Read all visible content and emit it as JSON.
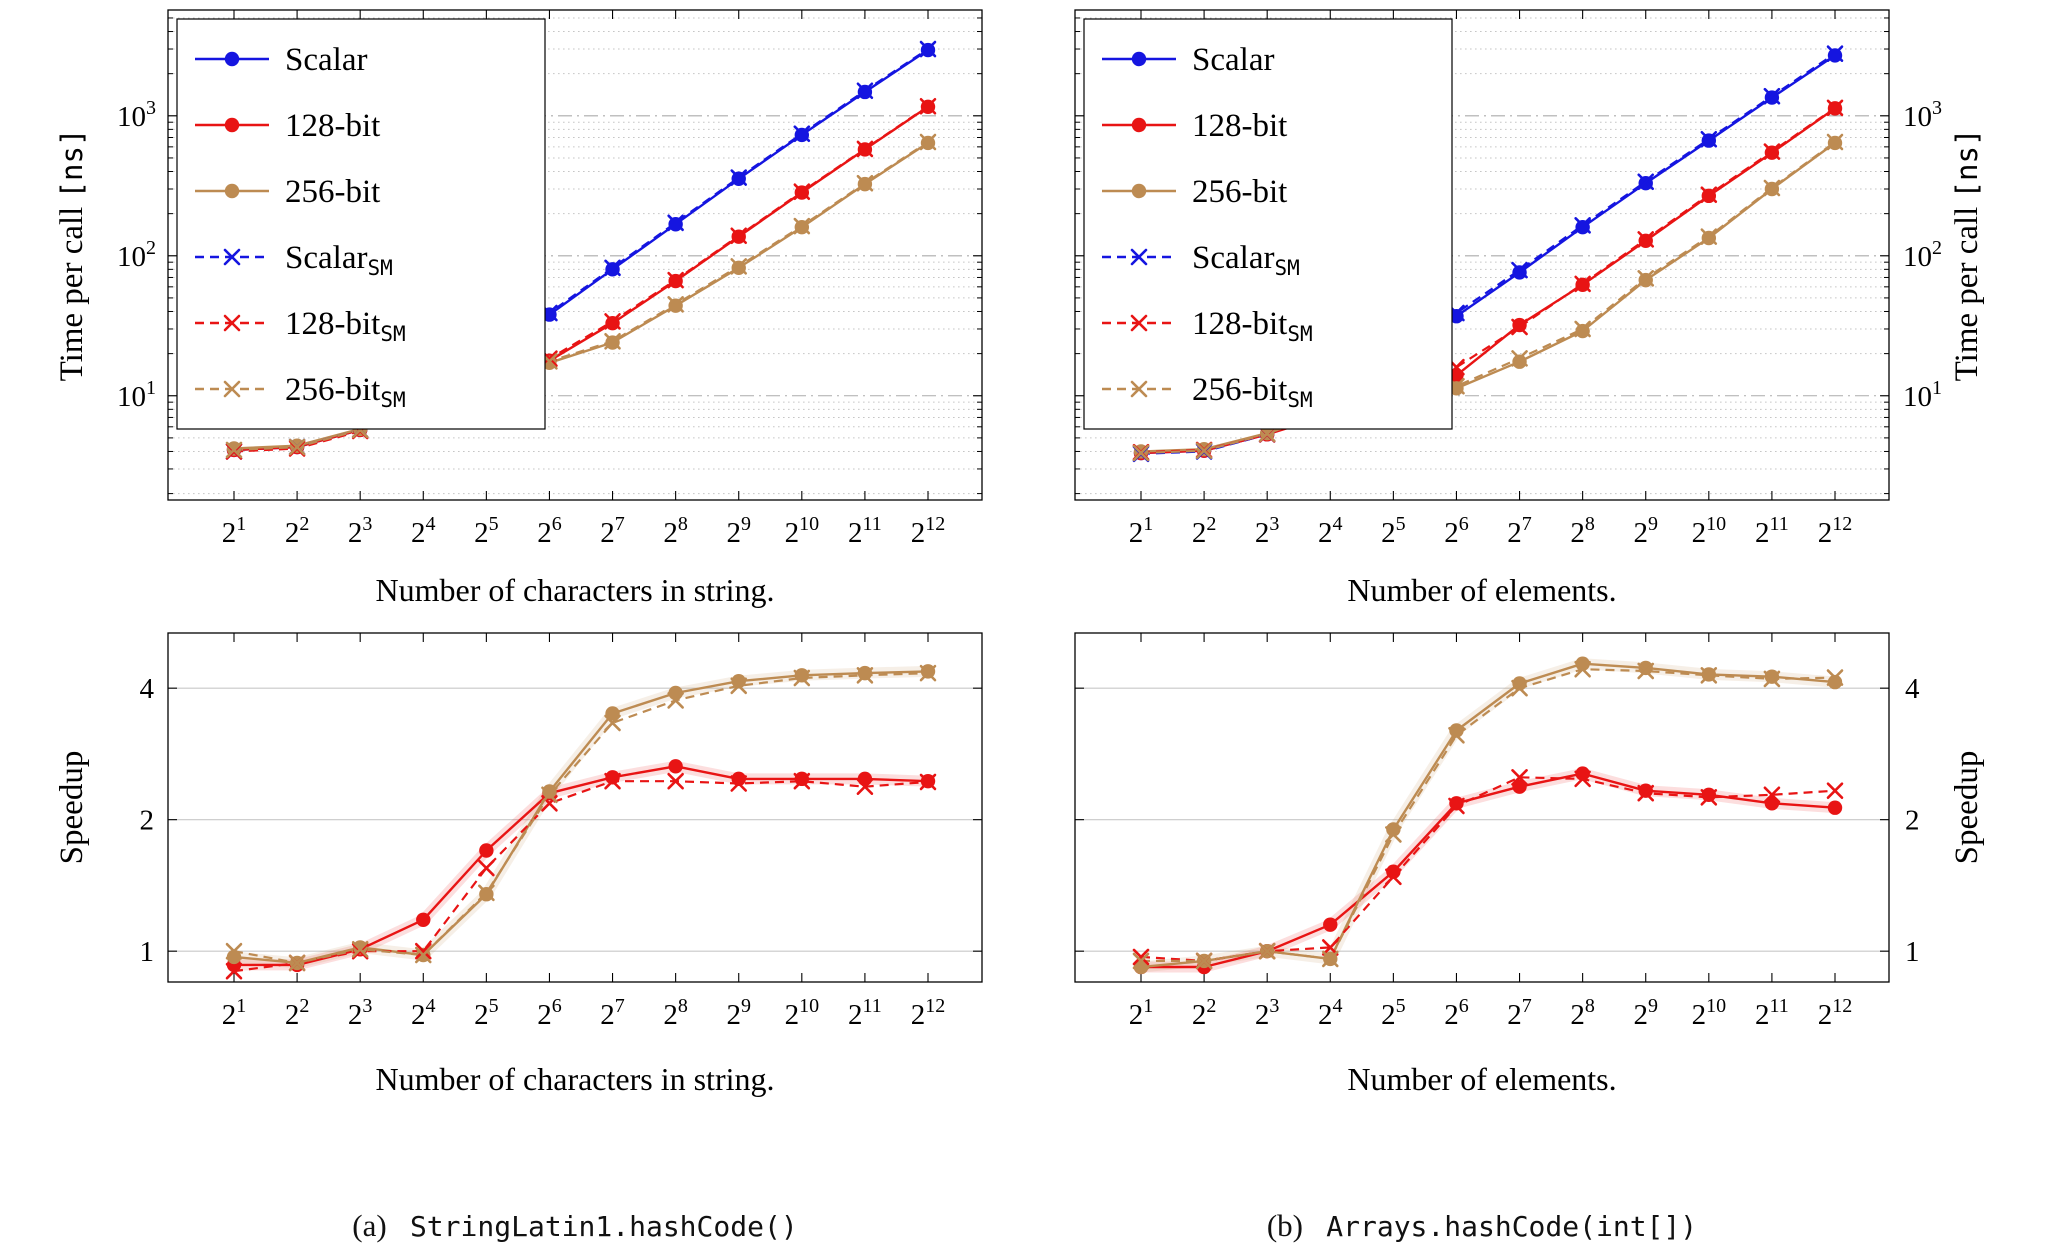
{
  "colors": {
    "blue": "#1515e0",
    "red": "#e81414",
    "tan": "#bd8b52"
  },
  "captions": {
    "a": {
      "prefix": "(a)",
      "code": "StringLatin1.hashCode()"
    },
    "b": {
      "prefix": "(b)",
      "code": "Arrays.hashCode(int[])"
    }
  },
  "chart_data": [
    {
      "id": "time-a",
      "type": "line",
      "title": "",
      "x_axis": {
        "label": "Number of characters in string.",
        "tick_base": "2",
        "tick_exponents": [
          1,
          2,
          3,
          4,
          5,
          6,
          7,
          8,
          9,
          10,
          11,
          12
        ]
      },
      "y_axis": {
        "label_text": "Time per call ",
        "label_mono": "[ns]",
        "scale": "log",
        "ticks": [
          10,
          100,
          1000
        ],
        "tick_style": "pow10",
        "lim": [
          1.8,
          5700
        ],
        "side": "left",
        "minor_grid": true
      },
      "legend": {
        "show": true
      },
      "series": [
        {
          "name": "Scalar",
          "sub": "",
          "color": "blue",
          "line": "solid",
          "marker": "circle",
          "band": false,
          "values": [
            4.1,
            4.3,
            5.7,
            9.2,
            18.5,
            38,
            80,
            168,
            355,
            730,
            1480,
            2950
          ]
        },
        {
          "name": "128-bit",
          "sub": "",
          "color": "red",
          "line": "solid",
          "marker": "circle",
          "band": false,
          "values": [
            4.1,
            4.3,
            5.7,
            8.9,
            11.2,
            17.8,
            33,
            66,
            137,
            283,
            575,
            1160
          ]
        },
        {
          "name": "256-bit",
          "sub": "",
          "color": "tan",
          "line": "solid",
          "marker": "circle",
          "band": false,
          "values": [
            4.2,
            4.4,
            5.8,
            9.6,
            14.2,
            17.2,
            24,
            44,
            82,
            160,
            325,
            640
          ]
        },
        {
          "name": "Scalar",
          "sub": "SM",
          "color": "blue",
          "line": "dashed",
          "marker": "x",
          "band": false,
          "values": [
            4.0,
            4.3,
            5.7,
            9.6,
            19.5,
            39,
            82,
            172,
            362,
            745,
            1510,
            3000
          ]
        },
        {
          "name": "128-bit",
          "sub": "SM",
          "color": "red",
          "line": "dashed",
          "marker": "x",
          "band": false,
          "values": [
            4.0,
            4.2,
            5.6,
            10.4,
            12.6,
            18.4,
            34,
            67,
            139,
            287,
            580,
            1170
          ]
        },
        {
          "name": "256-bit",
          "sub": "SM",
          "color": "tan",
          "line": "dashed",
          "marker": "x",
          "band": false,
          "values": [
            4.1,
            4.3,
            5.7,
            9.9,
            15.6,
            17.6,
            24.5,
            45,
            84,
            163,
            330,
            650
          ]
        }
      ]
    },
    {
      "id": "time-b",
      "type": "line",
      "title": "",
      "x_axis": {
        "label": "Number of elements.",
        "tick_base": "2",
        "tick_exponents": [
          1,
          2,
          3,
          4,
          5,
          6,
          7,
          8,
          9,
          10,
          11,
          12
        ]
      },
      "y_axis": {
        "label_text": "Time per call ",
        "label_mono": "[ns]",
        "scale": "log",
        "ticks": [
          10,
          100,
          1000
        ],
        "tick_style": "pow10",
        "lim": [
          1.8,
          5700
        ],
        "side": "right",
        "minor_grid": true
      },
      "legend": {
        "show": true
      },
      "series": [
        {
          "name": "Scalar",
          "sub": "",
          "color": "blue",
          "line": "solid",
          "marker": "circle",
          "band": false,
          "values": [
            3.9,
            4.05,
            5.3,
            7.6,
            15.2,
            37,
            76,
            160,
            330,
            665,
            1350,
            2700
          ]
        },
        {
          "name": "128-bit",
          "sub": "",
          "color": "red",
          "line": "solid",
          "marker": "circle",
          "band": false,
          "values": [
            3.9,
            4.05,
            5.3,
            7.3,
            9.6,
            14.0,
            32,
            62,
            128,
            268,
            545,
            1130
          ]
        },
        {
          "name": "256-bit",
          "sub": "",
          "color": "tan",
          "line": "solid",
          "marker": "circle",
          "band": false,
          "values": [
            4.0,
            4.15,
            5.4,
            7.7,
            8.0,
            11.3,
            17.5,
            29,
            67,
            134,
            300,
            640
          ]
        },
        {
          "name": "Scalar",
          "sub": "SM",
          "color": "blue",
          "line": "dashed",
          "marker": "x",
          "band": false,
          "values": [
            3.85,
            4.0,
            5.3,
            8.0,
            16.5,
            39,
            79,
            165,
            338,
            680,
            1380,
            2780
          ]
        },
        {
          "name": "128-bit",
          "sub": "SM",
          "color": "red",
          "line": "dashed",
          "marker": "x",
          "band": false,
          "values": [
            3.95,
            4.1,
            5.3,
            7.8,
            10.2,
            16.0,
            31,
            63,
            131,
            273,
            555,
            1140
          ]
        },
        {
          "name": "256-bit",
          "sub": "SM",
          "color": "tan",
          "line": "dashed",
          "marker": "x",
          "band": false,
          "values": [
            3.9,
            4.05,
            5.35,
            7.9,
            8.3,
            11.7,
            18.5,
            30,
            69,
            137,
            305,
            650
          ]
        }
      ]
    },
    {
      "id": "speed-a",
      "type": "line",
      "title": "",
      "x_axis": {
        "label": "Number of characters in string.",
        "tick_base": "2",
        "tick_exponents": [
          1,
          2,
          3,
          4,
          5,
          6,
          7,
          8,
          9,
          10,
          11,
          12
        ]
      },
      "y_axis": {
        "label_text": "Speedup",
        "label_mono": "",
        "scale": "log",
        "ticks": [
          1,
          2,
          4
        ],
        "tick_style": "plain",
        "lim": [
          0.85,
          5.35
        ],
        "side": "left",
        "minor_grid": false
      },
      "legend": {
        "show": false
      },
      "series": [
        {
          "name": "128-bit",
          "sub": "",
          "color": "red",
          "line": "solid",
          "marker": "circle",
          "band": true,
          "values": [
            0.93,
            0.93,
            1.01,
            1.18,
            1.7,
            2.3,
            2.5,
            2.65,
            2.48,
            2.48,
            2.48,
            2.45
          ]
        },
        {
          "name": "256-bit",
          "sub": "",
          "color": "tan",
          "line": "solid",
          "marker": "circle",
          "band": true,
          "values": [
            0.97,
            0.94,
            1.02,
            0.98,
            1.35,
            2.32,
            3.5,
            3.9,
            4.15,
            4.28,
            4.33,
            4.37
          ]
        },
        {
          "name": "128-bit",
          "sub": "SM",
          "color": "red",
          "line": "dashed",
          "marker": "x",
          "band": false,
          "values": [
            0.9,
            0.94,
            1.0,
            1.0,
            1.55,
            2.18,
            2.45,
            2.45,
            2.42,
            2.45,
            2.38,
            2.44
          ]
        },
        {
          "name": "256-bit",
          "sub": "SM",
          "color": "tan",
          "line": "dashed",
          "marker": "x",
          "band": false,
          "values": [
            1.0,
            0.94,
            1.01,
            0.98,
            1.36,
            2.28,
            3.33,
            3.75,
            4.05,
            4.22,
            4.28,
            4.33
          ]
        }
      ]
    },
    {
      "id": "speed-b",
      "type": "line",
      "title": "",
      "x_axis": {
        "label": "Number of elements.",
        "tick_base": "2",
        "tick_exponents": [
          1,
          2,
          3,
          4,
          5,
          6,
          7,
          8,
          9,
          10,
          11,
          12
        ]
      },
      "y_axis": {
        "label_text": "Speedup",
        "label_mono": "",
        "scale": "log",
        "ticks": [
          1,
          2,
          4
        ],
        "tick_style": "plain",
        "lim": [
          0.85,
          5.35
        ],
        "side": "right",
        "minor_grid": false
      },
      "legend": {
        "show": false
      },
      "series": [
        {
          "name": "128-bit",
          "sub": "",
          "color": "red",
          "line": "solid",
          "marker": "circle",
          "band": true,
          "values": [
            0.92,
            0.92,
            1.0,
            1.15,
            1.52,
            2.18,
            2.38,
            2.55,
            2.33,
            2.28,
            2.18,
            2.13
          ]
        },
        {
          "name": "256-bit",
          "sub": "",
          "color": "tan",
          "line": "solid",
          "marker": "circle",
          "band": true,
          "values": [
            0.92,
            0.95,
            1.0,
            0.96,
            1.9,
            3.2,
            4.1,
            4.55,
            4.45,
            4.3,
            4.25,
            4.13
          ]
        },
        {
          "name": "128-bit",
          "sub": "SM",
          "color": "red",
          "line": "dashed",
          "marker": "x",
          "band": false,
          "values": [
            0.97,
            0.95,
            1.0,
            1.02,
            1.48,
            2.15,
            2.5,
            2.48,
            2.3,
            2.25,
            2.28,
            2.33
          ]
        },
        {
          "name": "256-bit",
          "sub": "SM",
          "color": "tan",
          "line": "dashed",
          "marker": "x",
          "band": false,
          "values": [
            0.95,
            0.95,
            1.0,
            0.96,
            1.85,
            3.12,
            4.0,
            4.42,
            4.38,
            4.28,
            4.2,
            4.23
          ]
        }
      ]
    }
  ]
}
